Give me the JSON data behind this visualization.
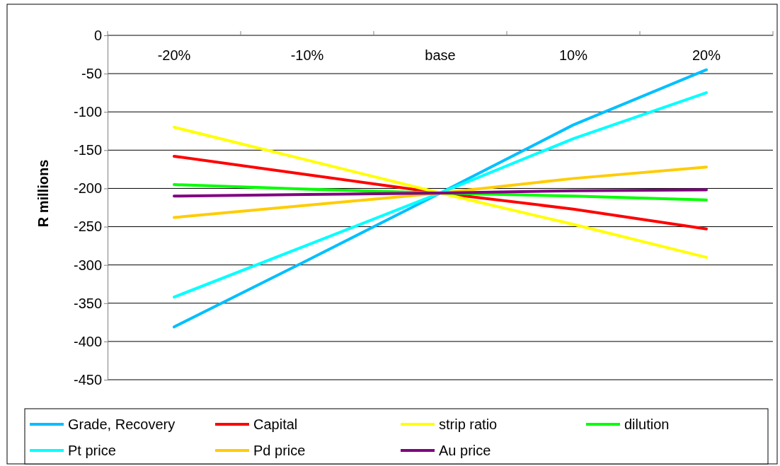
{
  "chart_data": {
    "type": "line",
    "ylabel": "R millions",
    "categories": [
      "-20%",
      "-10%",
      "base",
      "10%",
      "20%"
    ],
    "ylim": [
      -450,
      0
    ],
    "yticks": [
      -450,
      -400,
      -350,
      -300,
      -250,
      -200,
      -150,
      -100,
      -50,
      0
    ],
    "grid": "y",
    "legend": "bottom",
    "marker": "none",
    "line_style": "solid",
    "series": [
      {
        "name": "Grade, Recovery",
        "color": "#00bfff",
        "values": [
          -381,
          -294,
          -206,
          -117,
          -45
        ]
      },
      {
        "name": "Capital",
        "color": "#ff0000",
        "values": [
          -158,
          -182,
          -206,
          -227,
          -253
        ]
      },
      {
        "name": "strip ratio",
        "color": "#ffff00",
        "values": [
          -120,
          -163,
          -206,
          -247,
          -290
        ]
      },
      {
        "name": "dilution",
        "color": "#00ff00",
        "values": [
          -195,
          -201,
          -206,
          -210,
          -215
        ]
      },
      {
        "name": "Pt price",
        "color": "#00ffff",
        "values": [
          -342,
          -274,
          -206,
          -135,
          -75
        ]
      },
      {
        "name": "Pd price",
        "color": "#ffcc00",
        "values": [
          -238,
          -222,
          -206,
          -187,
          -172
        ]
      },
      {
        "name": "Au price",
        "color": "#800080",
        "values": [
          -210,
          -208,
          -206,
          -203,
          -202
        ]
      }
    ]
  }
}
